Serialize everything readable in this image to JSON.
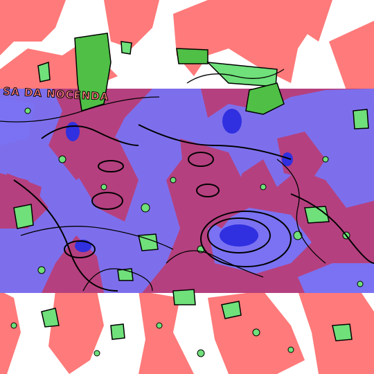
{
  "artwork": {
    "overlay_text": "SA DA NOCENDA",
    "colors": {
      "background": "#ffffff",
      "salmon": "#ff7a7a",
      "magenta": "#b5407f",
      "blue": "#7a72f2",
      "green": "#6fe07a",
      "dark_green": "#4fbf46",
      "deep_blue": "#3030e0",
      "outline": "#000000"
    }
  }
}
